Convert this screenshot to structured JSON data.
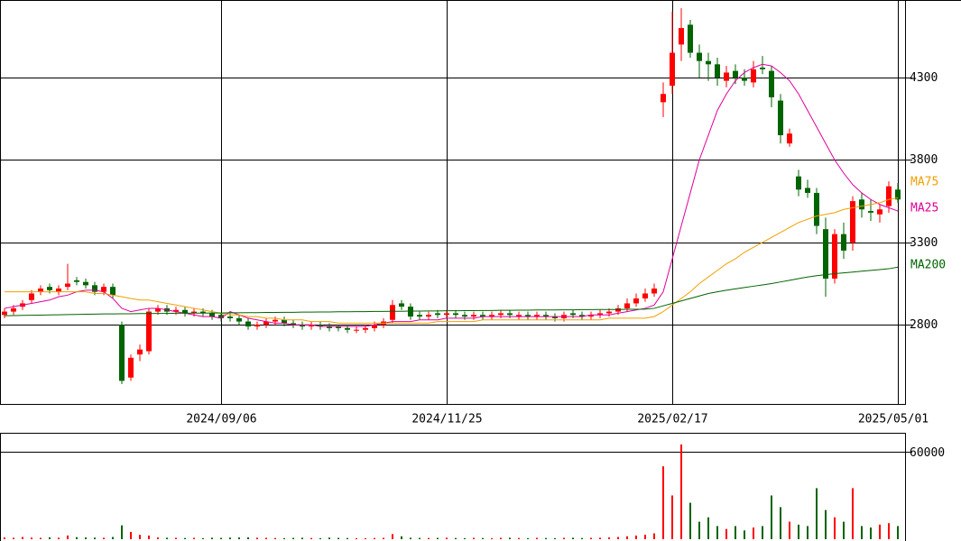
{
  "chart_data": {
    "type": "candlestick",
    "categories": [
      null,
      null,
      null,
      null,
      null,
      null,
      null,
      null,
      null,
      null,
      null,
      null,
      null,
      null,
      null,
      null,
      null,
      null,
      null,
      null,
      null,
      null,
      null,
      null,
      "2024/09/06",
      null,
      null,
      null,
      null,
      null,
      null,
      null,
      null,
      null,
      null,
      null,
      null,
      null,
      null,
      null,
      null,
      null,
      null,
      null,
      null,
      null,
      null,
      null,
      null,
      "2024/11/25",
      null,
      null,
      null,
      null,
      null,
      null,
      null,
      null,
      null,
      null,
      null,
      null,
      null,
      null,
      null,
      null,
      null,
      null,
      null,
      null,
      null,
      null,
      null,
      null,
      "2025/02/17",
      null,
      null,
      null,
      null,
      null,
      null,
      null,
      null,
      null,
      null,
      null,
      null,
      null,
      null,
      null,
      null,
      null,
      null,
      null,
      null,
      null,
      null,
      null,
      null,
      "2025/05/01"
    ],
    "open": [
      2860,
      2880,
      2910,
      2950,
      3000,
      3030,
      3000,
      3030,
      3070,
      3060,
      3040,
      3000,
      3030,
      2800,
      2480,
      2620,
      2640,
      2880,
      2900,
      2880,
      2890,
      2870,
      2880,
      2870,
      2860,
      2850,
      2840,
      2820,
      2790,
      2800,
      2820,
      2830,
      2810,
      2800,
      2790,
      2800,
      2790,
      2790,
      2780,
      2770,
      2770,
      2780,
      2800,
      2830,
      2930,
      2910,
      2860,
      2850,
      2870,
      2860,
      2870,
      2860,
      2850,
      2860,
      2850,
      2860,
      2870,
      2850,
      2860,
      2850,
      2860,
      2850,
      2840,
      2870,
      2860,
      2850,
      2860,
      2870,
      2880,
      2900,
      2930,
      2960,
      2990,
      4150,
      4250,
      4500,
      4620,
      4450,
      4400,
      4380,
      4280,
      4340,
      4300,
      4270,
      4360,
      4340,
      4160,
      3900,
      3700,
      3630,
      3600,
      3380,
      3080,
      3350,
      3300,
      3560,
      3490,
      3470,
      3520,
      3620
    ],
    "high": [
      2900,
      2920,
      2950,
      3010,
      3040,
      3050,
      3040,
      3170,
      3090,
      3080,
      3060,
      3050,
      3050,
      2820,
      2620,
      2680,
      2900,
      2920,
      2920,
      2910,
      2910,
      2900,
      2900,
      2890,
      2870,
      2870,
      2860,
      2840,
      2820,
      2840,
      2850,
      2850,
      2830,
      2820,
      2820,
      2820,
      2810,
      2800,
      2800,
      2790,
      2800,
      2820,
      2840,
      2950,
      2950,
      2930,
      2880,
      2880,
      2890,
      2890,
      2890,
      2880,
      2880,
      2880,
      2880,
      2890,
      2890,
      2880,
      2880,
      2880,
      2880,
      2870,
      2880,
      2890,
      2880,
      2880,
      2890,
      2900,
      2920,
      2960,
      2990,
      3020,
      3050,
      4270,
      4700,
      4720,
      4650,
      4500,
      4450,
      4420,
      4370,
      4380,
      4350,
      4400,
      4430,
      4370,
      4200,
      3990,
      3740,
      3680,
      3630,
      3450,
      3380,
      3420,
      3580,
      3600,
      3560,
      3530,
      3670,
      3660
    ],
    "low": [
      2840,
      2860,
      2890,
      2930,
      2980,
      2990,
      2980,
      3010,
      3040,
      3020,
      2980,
      2980,
      2960,
      2440,
      2460,
      2580,
      2620,
      2860,
      2860,
      2860,
      2850,
      2850,
      2850,
      2830,
      2820,
      2820,
      2800,
      2770,
      2770,
      2780,
      2800,
      2790,
      2780,
      2770,
      2770,
      2770,
      2760,
      2760,
      2750,
      2750,
      2750,
      2760,
      2780,
      2810,
      2890,
      2830,
      2830,
      2830,
      2840,
      2840,
      2840,
      2830,
      2830,
      2830,
      2830,
      2840,
      2840,
      2830,
      2830,
      2830,
      2830,
      2820,
      2820,
      2840,
      2830,
      2830,
      2840,
      2850,
      2860,
      2880,
      2910,
      2940,
      2970,
      4060,
      4200,
      4400,
      4420,
      4300,
      4280,
      4250,
      4240,
      4260,
      4250,
      4240,
      4320,
      4120,
      3900,
      3880,
      3580,
      3570,
      3350,
      2970,
      3050,
      3200,
      3250,
      3450,
      3430,
      3420,
      3480,
      3540
    ],
    "close": [
      2880,
      2900,
      2930,
      2990,
      3020,
      3010,
      3020,
      3050,
      3060,
      3040,
      3000,
      3030,
      2980,
      2460,
      2600,
      2650,
      2880,
      2900,
      2880,
      2890,
      2870,
      2880,
      2870,
      2850,
      2840,
      2840,
      2820,
      2790,
      2800,
      2820,
      2830,
      2810,
      2800,
      2790,
      2800,
      2790,
      2780,
      2780,
      2770,
      2770,
      2780,
      2800,
      2820,
      2920,
      2910,
      2850,
      2850,
      2860,
      2860,
      2870,
      2860,
      2850,
      2860,
      2850,
      2860,
      2870,
      2860,
      2860,
      2850,
      2860,
      2850,
      2840,
      2860,
      2860,
      2850,
      2860,
      2870,
      2880,
      2900,
      2930,
      2960,
      2990,
      3020,
      4200,
      4450,
      4600,
      4450,
      4400,
      4380,
      4300,
      4330,
      4300,
      4280,
      4350,
      4350,
      4180,
      3950,
      3960,
      3620,
      3600,
      3400,
      3080,
      3350,
      3250,
      3550,
      3500,
      3480,
      3500,
      3640,
      3560
    ],
    "volume": [
      1200,
      1000,
      1500,
      1100,
      900,
      1300,
      1000,
      2500,
      1400,
      1200,
      1100,
      1000,
      1500,
      9500,
      5000,
      3000,
      2500,
      1200,
      1000,
      900,
      800,
      900,
      700,
      1000,
      900,
      1100,
      1200,
      1300,
      1000,
      900,
      800,
      700,
      900,
      1000,
      800,
      700,
      1100,
      900,
      800,
      700,
      700,
      800,
      900,
      3500,
      2000,
      1000,
      900,
      800,
      900,
      1000,
      800,
      700,
      900,
      800,
      700,
      900,
      1000,
      800,
      700,
      900,
      800,
      700,
      900,
      1000,
      800,
      900,
      1000,
      1200,
      1500,
      2000,
      2500,
      3000,
      4000,
      50000,
      30000,
      65000,
      25000,
      12000,
      15000,
      9000,
      7000,
      9000,
      6000,
      8000,
      9000,
      30000,
      22000,
      12000,
      10000,
      9000,
      35000,
      20000,
      15000,
      12000,
      35000,
      9000,
      8000,
      10000,
      11000,
      9000
    ],
    "up_color": "#ff0000",
    "down_color": "#006400",
    "series": [
      {
        "name": "MA25",
        "color": "#e0009a",
        "values": [
          2900,
          2910,
          2920,
          2930,
          2940,
          2950,
          2970,
          2980,
          3000,
          3010,
          3010,
          3000,
          2960,
          2900,
          2880,
          2890,
          2900,
          2900,
          2890,
          2880,
          2870,
          2860,
          2850,
          2850,
          2840,
          2880,
          2860,
          2840,
          2830,
          2820,
          2810,
          2810,
          2800,
          2800,
          2800,
          2790,
          2790,
          2790,
          2790,
          2790,
          2790,
          2800,
          2810,
          2820,
          2820,
          2820,
          2830,
          2830,
          2830,
          2840,
          2840,
          2840,
          2840,
          2850,
          2850,
          2850,
          2850,
          2850,
          2850,
          2850,
          2850,
          2850,
          2850,
          2850,
          2850,
          2860,
          2860,
          2860,
          2870,
          2880,
          2890,
          2900,
          2920,
          3000,
          3200,
          3400,
          3600,
          3800,
          3950,
          4100,
          4200,
          4280,
          4330,
          4360,
          4380,
          4370,
          4330,
          4280,
          4200,
          4100,
          4000,
          3900,
          3800,
          3720,
          3650,
          3600,
          3560,
          3530,
          3510,
          3490
        ]
      },
      {
        "name": "MA75",
        "color": "#f0a000",
        "values": [
          3000,
          3000,
          3000,
          3000,
          3000,
          3000,
          3000,
          3000,
          3000,
          3000,
          2990,
          2990,
          2980,
          2970,
          2960,
          2950,
          2950,
          2940,
          2930,
          2920,
          2910,
          2900,
          2890,
          2880,
          2870,
          2860,
          2860,
          2850,
          2850,
          2840,
          2840,
          2830,
          2830,
          2830,
          2820,
          2820,
          2820,
          2810,
          2810,
          2810,
          2810,
          2810,
          2810,
          2810,
          2810,
          2810,
          2810,
          2810,
          2820,
          2820,
          2820,
          2820,
          2820,
          2830,
          2830,
          2830,
          2830,
          2830,
          2830,
          2830,
          2830,
          2830,
          2830,
          2830,
          2830,
          2830,
          2830,
          2840,
          2840,
          2840,
          2840,
          2840,
          2850,
          2880,
          2920,
          2960,
          3000,
          3050,
          3090,
          3130,
          3170,
          3200,
          3240,
          3270,
          3300,
          3330,
          3360,
          3390,
          3420,
          3440,
          3460,
          3470,
          3480,
          3500,
          3510,
          3520,
          3530,
          3540,
          3560,
          3570
        ]
      },
      {
        "name": "MA200",
        "color": "#006400",
        "values": [
          2855,
          2856,
          2857,
          2858,
          2859,
          2860,
          2861,
          2862,
          2863,
          2864,
          2865,
          2866,
          2866,
          2867,
          2867,
          2868,
          2868,
          2869,
          2869,
          2870,
          2870,
          2871,
          2871,
          2872,
          2872,
          2873,
          2873,
          2874,
          2874,
          2875,
          2875,
          2876,
          2876,
          2877,
          2877,
          2878,
          2878,
          2879,
          2879,
          2880,
          2880,
          2881,
          2881,
          2882,
          2882,
          2883,
          2883,
          2884,
          2884,
          2885,
          2885,
          2886,
          2886,
          2887,
          2887,
          2888,
          2888,
          2889,
          2889,
          2890,
          2890,
          2890,
          2891,
          2891,
          2892,
          2892,
          2893,
          2893,
          2893,
          2894,
          2894,
          2895,
          2900,
          2915,
          2930,
          2945,
          2960,
          2975,
          2990,
          3000,
          3010,
          3018,
          3026,
          3034,
          3042,
          3050,
          3060,
          3070,
          3080,
          3090,
          3098,
          3104,
          3110,
          3115,
          3120,
          3125,
          3130,
          3135,
          3140,
          3150
        ]
      }
    ],
    "ylim": [
      2320,
      4770
    ],
    "yticks": [
      2800,
      3300,
      3800,
      4300
    ],
    "volume_ylim": [
      0,
      73000
    ],
    "volume_yticks": [
      60000
    ]
  }
}
